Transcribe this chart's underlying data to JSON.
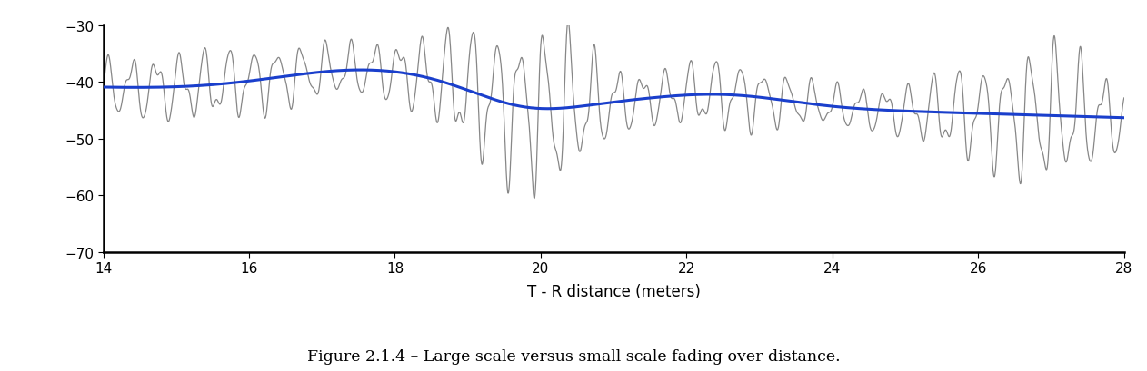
{
  "xlim": [
    14,
    28
  ],
  "ylim": [
    -70,
    -30
  ],
  "xticks": [
    14,
    16,
    18,
    20,
    22,
    24,
    26,
    28
  ],
  "yticks": [
    -70,
    -60,
    -50,
    -40,
    -30
  ],
  "xlabel": "T - R distance (meters)",
  "caption": "Figure 2.1.4 – Large scale versus small scale fading over distance.",
  "large_scale_color": "#1a3fcc",
  "small_scale_color": "#7a7a7a",
  "background_color": "#ffffff",
  "large_scale_linewidth": 2.2,
  "small_scale_linewidth": 0.9,
  "fig_width": 12.62,
  "fig_height": 4.1,
  "dpi": 100
}
